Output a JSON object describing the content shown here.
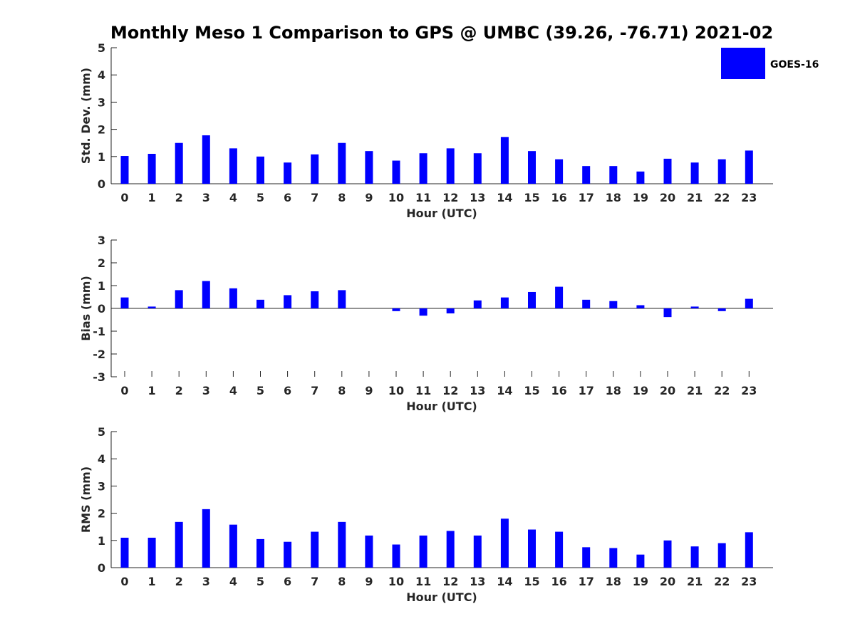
{
  "title": "Monthly Meso 1 Comparison to GPS @ UMBC (39.26, -76.71) 2021-02",
  "legend": {
    "label": "GOES-16",
    "color": "#0000ff",
    "placement": "top-right"
  },
  "chart_data": [
    {
      "type": "bar",
      "xlabel": "Hour (UTC)",
      "ylabel": "Std. Dev. (mm)",
      "ylim": [
        0,
        5
      ],
      "yticks": [
        0,
        1,
        2,
        3,
        4,
        5
      ],
      "categories": [
        "0",
        "1",
        "2",
        "3",
        "4",
        "5",
        "6",
        "7",
        "8",
        "9",
        "10",
        "11",
        "12",
        "13",
        "14",
        "15",
        "16",
        "17",
        "18",
        "19",
        "20",
        "21",
        "22",
        "23"
      ],
      "series": [
        {
          "name": "GOES-16",
          "color": "#0000ff",
          "values": [
            1.02,
            1.1,
            1.5,
            1.78,
            1.3,
            1.0,
            0.78,
            1.08,
            1.5,
            1.2,
            0.85,
            1.12,
            1.3,
            1.12,
            1.72,
            1.2,
            0.9,
            0.65,
            0.65,
            0.45,
            0.92,
            0.78,
            0.9,
            1.22
          ]
        }
      ]
    },
    {
      "type": "bar",
      "xlabel": "Hour (UTC)",
      "ylabel": "Bias (mm)",
      "ylim": [
        -3,
        3
      ],
      "yticks": [
        -3,
        -2,
        -1,
        0,
        1,
        2,
        3
      ],
      "categories": [
        "0",
        "1",
        "2",
        "3",
        "4",
        "5",
        "6",
        "7",
        "8",
        "9",
        "10",
        "11",
        "12",
        "13",
        "14",
        "15",
        "16",
        "17",
        "18",
        "19",
        "20",
        "21",
        "22",
        "23"
      ],
      "series": [
        {
          "name": "GOES-16",
          "color": "#0000ff",
          "values": [
            0.48,
            0.08,
            0.8,
            1.2,
            0.88,
            0.38,
            0.58,
            0.75,
            0.8,
            0.0,
            -0.12,
            -0.32,
            -0.22,
            0.35,
            0.48,
            0.72,
            0.95,
            0.38,
            0.32,
            0.14,
            -0.38,
            0.08,
            -0.12,
            0.42
          ]
        }
      ]
    },
    {
      "type": "bar",
      "xlabel": "Hour (UTC)",
      "ylabel": "RMS (mm)",
      "ylim": [
        0,
        5
      ],
      "yticks": [
        0,
        1,
        2,
        3,
        4,
        5
      ],
      "categories": [
        "0",
        "1",
        "2",
        "3",
        "4",
        "5",
        "6",
        "7",
        "8",
        "9",
        "10",
        "11",
        "12",
        "13",
        "14",
        "15",
        "16",
        "17",
        "18",
        "19",
        "20",
        "21",
        "22",
        "23"
      ],
      "series": [
        {
          "name": "GOES-16",
          "color": "#0000ff",
          "values": [
            1.1,
            1.1,
            1.68,
            2.15,
            1.58,
            1.05,
            0.95,
            1.32,
            1.68,
            1.18,
            0.85,
            1.18,
            1.35,
            1.18,
            1.8,
            1.4,
            1.32,
            0.75,
            0.72,
            0.48,
            1.0,
            0.78,
            0.9,
            1.3
          ]
        }
      ]
    }
  ]
}
